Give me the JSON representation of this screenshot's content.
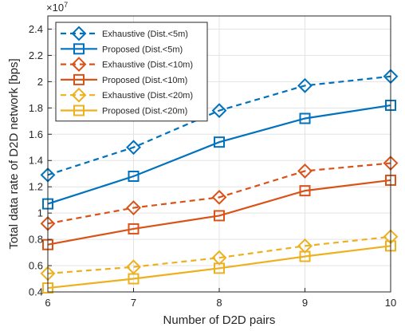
{
  "chart_data": {
    "type": "line",
    "title": "",
    "xlabel": "Number of D2D pairs",
    "ylabel": "Total data rate of D2D network [bps]",
    "y_exponent_label": "×10",
    "y_exponent_power": "7",
    "x": [
      6,
      7,
      8,
      9,
      10
    ],
    "xlim": [
      6,
      10
    ],
    "ylim": [
      0.4,
      2.5
    ],
    "x_ticks": [
      6,
      7,
      8,
      9,
      10
    ],
    "x_tick_labels": [
      "6",
      "7",
      "8",
      "9",
      "10"
    ],
    "y_ticks": [
      0.4,
      0.6,
      0.8,
      1.0,
      1.2,
      1.4,
      1.6,
      1.8,
      2.0,
      2.2,
      2.4
    ],
    "y_tick_labels": [
      "0.4",
      "0.6",
      "0.8",
      "1",
      "1.2",
      "1.4",
      "1.6",
      "1.8",
      "2",
      "2.2",
      "2.4"
    ],
    "y_scale_factor": "1e7",
    "grid": true,
    "legend_position": "top-left",
    "series": [
      {
        "name": "Exhaustive (Dist.<5m)",
        "color": "#0072BD",
        "style": "dashed",
        "marker": "diamond",
        "values": [
          1.29,
          1.5,
          1.78,
          1.97,
          2.04
        ]
      },
      {
        "name": "Proposed (Dist.<5m)",
        "color": "#0072BD",
        "style": "solid",
        "marker": "square",
        "values": [
          1.07,
          1.28,
          1.54,
          1.72,
          1.82
        ]
      },
      {
        "name": "Exhaustive (Dist.<10m)",
        "color": "#D95319",
        "style": "dashed",
        "marker": "diamond",
        "values": [
          0.92,
          1.04,
          1.12,
          1.32,
          1.38
        ]
      },
      {
        "name": "Proposed (Dist.<10m)",
        "color": "#D95319",
        "style": "solid",
        "marker": "square",
        "values": [
          0.76,
          0.88,
          0.98,
          1.17,
          1.25
        ]
      },
      {
        "name": "Exhaustive (Dist.<20m)",
        "color": "#EDB120",
        "style": "dashed",
        "marker": "diamond",
        "values": [
          0.54,
          0.59,
          0.66,
          0.75,
          0.82
        ]
      },
      {
        "name": "Proposed (Dist.<20m)",
        "color": "#EDB120",
        "style": "solid",
        "marker": "square",
        "values": [
          0.43,
          0.5,
          0.58,
          0.67,
          0.75
        ]
      }
    ]
  }
}
